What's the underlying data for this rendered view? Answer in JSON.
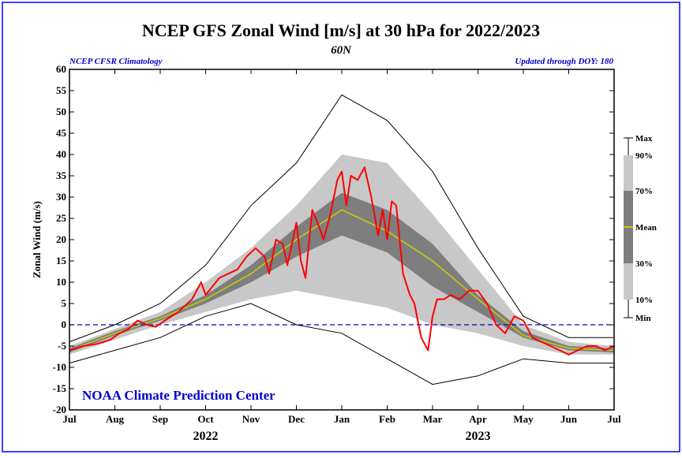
{
  "chart_data": {
    "type": "area",
    "title": "NCEP GFS Zonal Wind [m/s] at 30 hPa for 2022/2023",
    "subtitle": "60N",
    "source_left": "NCEP CFSR Climatology",
    "source_right": "Updated through DOY: 180",
    "credit": "NOAA Climate Prediction Center",
    "ylabel": "Zonal Wind (m/s)",
    "ylim": [
      -20,
      60
    ],
    "yticks": [
      -20,
      -15,
      -10,
      -5,
      0,
      5,
      10,
      15,
      20,
      25,
      30,
      35,
      40,
      45,
      50,
      55,
      60
    ],
    "xticks": [
      "Jul",
      "Aug",
      "Sep",
      "Oct",
      "Nov",
      "Dec",
      "Jan",
      "Feb",
      "Mar",
      "Apr",
      "May",
      "Jun",
      "Jul"
    ],
    "year_labels": [
      {
        "label": "2022",
        "month_index": 3
      },
      {
        "label": "2023",
        "month_index": 9
      }
    ],
    "zero_line": 0,
    "legend": {
      "placement": "right",
      "labels": {
        "max": "Max",
        "p90": "90%",
        "p70": "70%",
        "mean": "Mean",
        "p30": "30%",
        "p10": "10%",
        "min": "Min"
      }
    },
    "colors": {
      "p10_90_band": "#c8c8c8",
      "p30_70_band": "#7e7e7e",
      "mean": "#cccc00",
      "observed": "#ff0000",
      "minmax": "#000000",
      "zero_line": "#0000cc",
      "frame": "#0000ff",
      "credit": "#0000cc"
    },
    "climatology": {
      "month_x": [
        0,
        1,
        2,
        3,
        4,
        5,
        6,
        7,
        8,
        9,
        10,
        11,
        12
      ],
      "max": [
        -4,
        0,
        5,
        14,
        28,
        38,
        54,
        48,
        36,
        18,
        2,
        -3,
        -3
      ],
      "p90": [
        -5,
        -1,
        3,
        10,
        18,
        28,
        40,
        38,
        26,
        13,
        0,
        -4,
        -5
      ],
      "p70": [
        -5.5,
        -1.5,
        2,
        7,
        14,
        23,
        31,
        27,
        19,
        7,
        -1.5,
        -5,
        -5.5
      ],
      "mean": [
        -6,
        -2,
        1.5,
        6,
        12,
        20,
        27,
        22,
        15,
        6,
        -2.5,
        -5.5,
        -6
      ],
      "p30": [
        -6.5,
        -2.5,
        1,
        5,
        10,
        16,
        21,
        17,
        9,
        3,
        -3,
        -6,
        -6.5
      ],
      "p10": [
        -7,
        -3.5,
        0,
        3,
        6,
        8,
        6,
        4,
        0,
        -2,
        -5,
        -7,
        -7
      ],
      "min": [
        -9,
        -6,
        -3,
        2,
        5,
        0,
        -2,
        -8,
        -14,
        -12,
        -8,
        -9,
        -9
      ]
    },
    "observed": {
      "name": "2022/2023",
      "x": [
        0,
        0.3,
        0.6,
        0.9,
        1.1,
        1.3,
        1.5,
        1.7,
        1.9,
        2.1,
        2.4,
        2.7,
        2.9,
        3.0,
        3.3,
        3.5,
        3.7,
        3.9,
        4.1,
        4.3,
        4.4,
        4.55,
        4.7,
        4.8,
        4.9,
        5.0,
        5.1,
        5.2,
        5.35,
        5.5,
        5.6,
        5.75,
        5.9,
        6.0,
        6.1,
        6.2,
        6.35,
        6.5,
        6.65,
        6.8,
        6.9,
        7.0,
        7.1,
        7.2,
        7.35,
        7.5,
        7.6,
        7.75,
        7.9,
        8.0,
        8.1,
        8.25,
        8.4,
        8.6,
        8.8,
        9.0,
        9.2,
        9.4,
        9.6,
        9.8,
        10.0,
        10.2,
        10.4,
        10.6,
        10.8,
        11.0,
        11.2,
        11.4,
        11.6,
        11.8,
        12.0
      ],
      "y": [
        -6,
        -5,
        -4.5,
        -3.5,
        -2,
        -1,
        1,
        0,
        -0.5,
        1,
        3,
        6,
        10,
        7,
        11,
        12,
        13,
        16,
        18,
        16,
        12,
        20,
        19,
        14,
        19,
        24,
        15,
        11,
        27,
        23,
        20,
        26,
        34,
        36,
        28,
        35,
        34,
        37,
        30,
        21,
        27,
        20,
        29,
        28,
        12,
        7,
        5,
        -3,
        -6,
        2,
        6,
        6,
        7,
        6,
        8,
        8,
        5,
        0,
        -2,
        2,
        1,
        -3,
        -4,
        -5,
        -6,
        -7,
        -6,
        -5,
        -5,
        -6,
        -5
      ]
    }
  }
}
